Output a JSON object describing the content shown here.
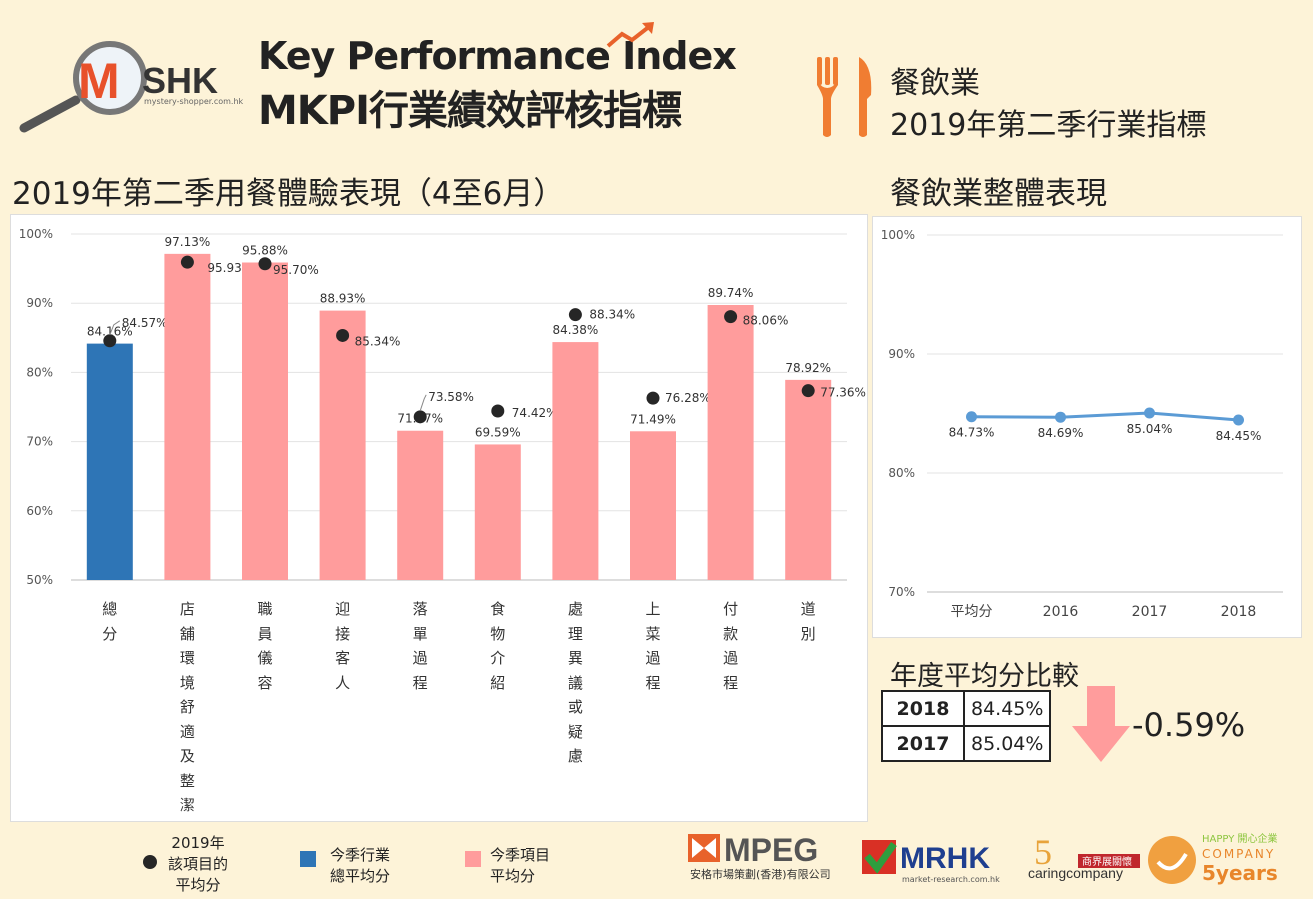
{
  "header": {
    "brand_text": "SHK",
    "brand_sub": "mystery-shopper.com.hk",
    "title_en": "Key Performance Index",
    "title_zh": "MKPI行業績效評核指標",
    "industry": "餐飲業",
    "period": "2019年第二季行業指標"
  },
  "main_title": "2019年第二季用餐體驗表現（4至6月）",
  "side_title": "餐飲業整體表現",
  "chart_data": [
    {
      "type": "bar",
      "categories": [
        "總分",
        "店舖環境舒適及整潔",
        "職員儀容",
        "迎接客人",
        "落單過程",
        "食物介紹",
        "處理異議或疑慮",
        "上菜過程",
        "付款過程",
        "道別"
      ],
      "series": [
        {
          "name": "今季項目平均分",
          "values": [
            84.16,
            97.13,
            95.88,
            88.93,
            71.57,
            69.59,
            84.38,
            71.49,
            89.74,
            78.92
          ],
          "labels": [
            "84.16%",
            "97.13%",
            "95.88%",
            "88.93%",
            "71.57%",
            "69.59%",
            "84.38%",
            "71.49%",
            "89.74%",
            "78.92%"
          ]
        },
        {
          "name": "2019年該項目的平均分",
          "values": [
            84.57,
            95.93,
            95.7,
            85.34,
            73.58,
            74.42,
            88.34,
            76.28,
            88.06,
            77.36
          ],
          "labels": [
            "84.57%",
            "95.93%",
            "95.70%",
            "85.34%",
            "73.58%",
            "74.42%",
            "88.34%",
            "76.28%",
            "88.06%",
            "77.36%"
          ]
        }
      ],
      "highlight_category": "總分",
      "y_ticks": [
        "50%",
        "60%",
        "70%",
        "80%",
        "90%",
        "100%"
      ],
      "ylim": [
        50,
        100
      ],
      "colors": {
        "highlight": "#2e75b6",
        "bar": "#ff9c9c",
        "dot": "#262626"
      }
    },
    {
      "type": "line",
      "categories": [
        "平均分",
        "2016",
        "2017",
        "2018"
      ],
      "values": [
        84.73,
        84.69,
        85.04,
        84.45
      ],
      "labels": [
        "84.73%",
        "84.69%",
        "85.04%",
        "84.45%"
      ],
      "y_ticks": [
        "70%",
        "80%",
        "90%",
        "100%"
      ],
      "ylim": [
        70,
        100
      ],
      "color": "#5b9bd5"
    }
  ],
  "yearly": {
    "title": "年度平均分比較",
    "rows": [
      {
        "year": "2018",
        "value": "84.45%"
      },
      {
        "year": "2017",
        "value": "85.04%"
      }
    ],
    "diff": "-0.59%"
  },
  "legend": {
    "dot_label": [
      "2019年",
      "該項目的",
      "平均分"
    ],
    "blue_label": [
      "今季行業",
      "總平均分"
    ],
    "pink_label": [
      "今季項目",
      "平均分"
    ]
  },
  "footer": {
    "mpeg": "MPEG",
    "mpeg_sub": "安格市場策劃(香港)有限公司",
    "mrhk": "MRHK",
    "mrhk_sub": "market-research.com.hk",
    "caring": "caringcompany",
    "caring_badge": "商界展關懷",
    "happy_top": "HAPPY 開心企業",
    "happy_mid": "COMPANY",
    "happy_bottom": "5years"
  }
}
